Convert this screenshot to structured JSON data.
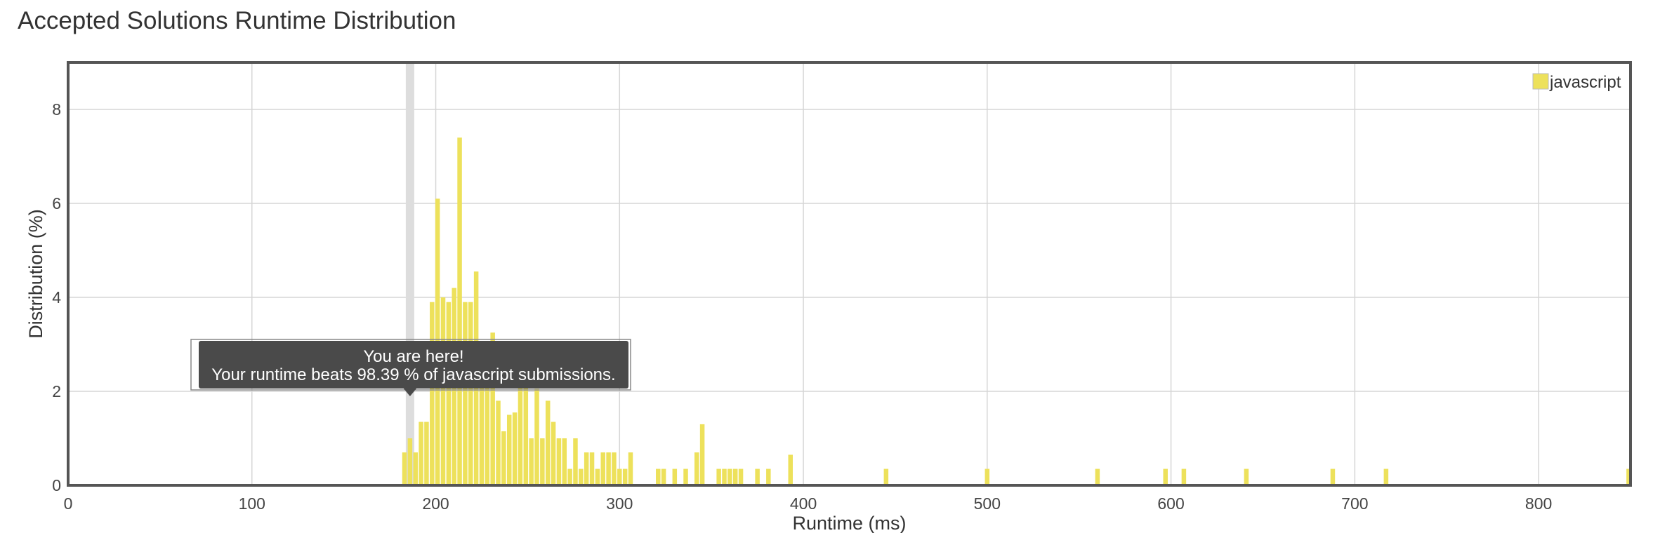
{
  "page": {
    "title": "Accepted Solutions Runtime Distribution"
  },
  "colors": {
    "bar": "#ede15b",
    "grid": "#d6d6d6",
    "frame": "#555555",
    "marker": "#dddddd",
    "tooltip_bg": "#4a4a4a"
  },
  "tooltip": {
    "line1": "You are here!",
    "line2": "Your runtime beats 98.39 % of javascript submissions."
  },
  "chart_data": {
    "type": "bar",
    "title": "Accepted Solutions Runtime Distribution",
    "xlabel": "Runtime (ms)",
    "ylabel": "Distribution (%)",
    "xlim": [
      0,
      850
    ],
    "ylim": [
      0,
      9
    ],
    "xticks": [
      0,
      100,
      200,
      300,
      400,
      500,
      600,
      700,
      800
    ],
    "yticks": [
      0,
      2,
      4,
      6,
      8
    ],
    "grid": true,
    "legend_position": "top-right",
    "highlight_runtime": 186,
    "series": [
      {
        "name": "javascript",
        "x": [
          183,
          186,
          189,
          192,
          195,
          198,
          201,
          204,
          207,
          210,
          213,
          216,
          219,
          222,
          225,
          228,
          231,
          234,
          237,
          240,
          243,
          246,
          249,
          252,
          255,
          258,
          261,
          264,
          267,
          270,
          273,
          276,
          279,
          282,
          285,
          288,
          291,
          294,
          297,
          300,
          303,
          306,
          321,
          324,
          330,
          336,
          342,
          345,
          354,
          357,
          360,
          363,
          366,
          375,
          381,
          393,
          445,
          500,
          560,
          597,
          607,
          641,
          688,
          717,
          849
        ],
        "values": [
          0.7,
          1.0,
          0.7,
          1.35,
          1.35,
          3.9,
          6.1,
          4.0,
          3.9,
          4.2,
          7.4,
          3.9,
          3.9,
          4.55,
          3.0,
          2.9,
          3.25,
          1.8,
          1.15,
          1.5,
          1.55,
          2.35,
          2.45,
          1.0,
          2.05,
          1.0,
          1.8,
          1.35,
          1.0,
          1.0,
          0.35,
          1.0,
          0.35,
          0.7,
          0.7,
          0.35,
          0.7,
          0.7,
          0.7,
          0.35,
          0.35,
          0.7,
          0.35,
          0.35,
          0.35,
          0.35,
          0.7,
          1.3,
          0.35,
          0.35,
          0.35,
          0.35,
          0.35,
          0.35,
          0.35,
          0.65,
          0.35,
          0.35,
          0.35,
          0.35,
          0.35,
          0.35,
          0.35,
          0.35,
          0.35
        ]
      }
    ]
  }
}
